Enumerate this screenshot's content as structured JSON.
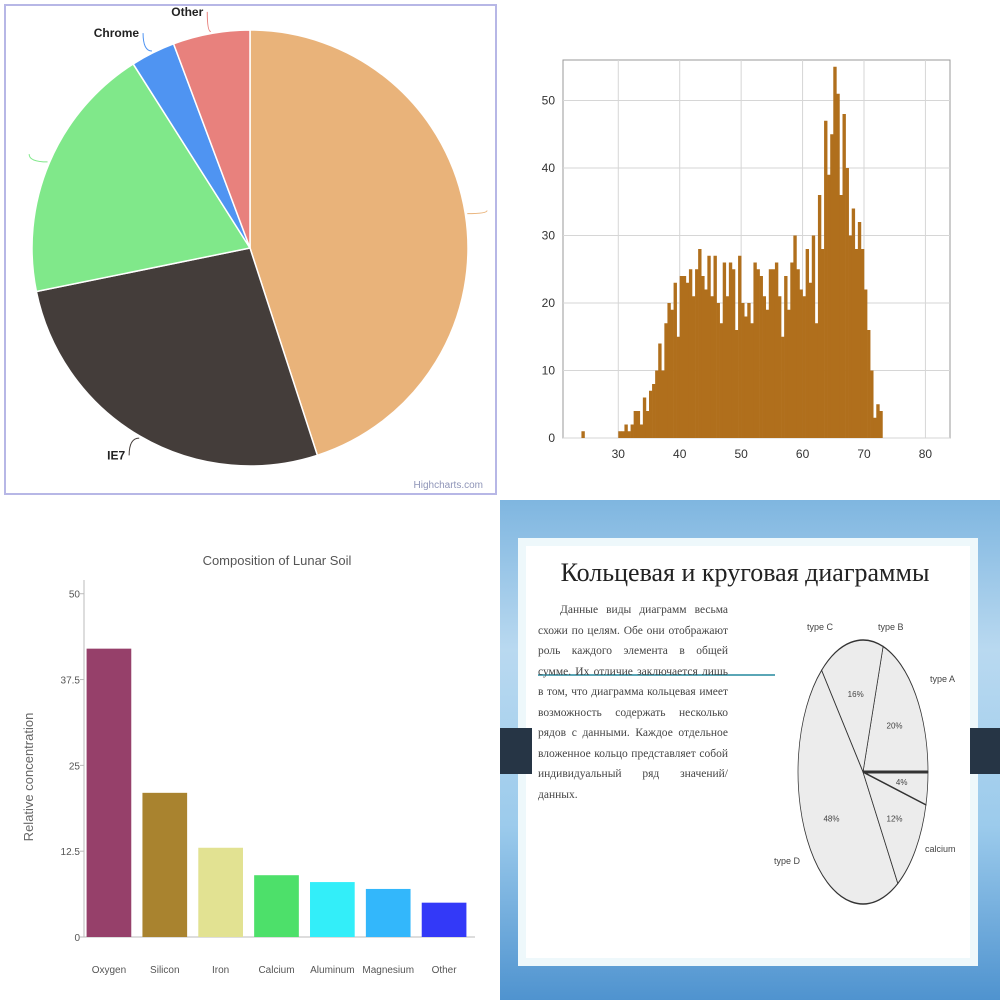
{
  "chart_data": [
    {
      "type": "pie",
      "title": "",
      "credit": "Highcharts.com",
      "slices": [
        {
          "label": "",
          "value": 45.0,
          "color": "#e9b37a"
        },
        {
          "label": "IE7",
          "value": 26.8,
          "color": "#443d3a"
        },
        {
          "label": "",
          "value": 19.2,
          "color": "#80e88a"
        },
        {
          "label": "Chrome",
          "value": 3.3,
          "color": "#4f94f2"
        },
        {
          "label": "Other",
          "value": 5.7,
          "color": "#e8817d"
        }
      ]
    },
    {
      "type": "bar",
      "title": "",
      "xlabel": "",
      "ylabel": "",
      "xlim": [
        21,
        84
      ],
      "ylim": [
        0,
        56
      ],
      "grid": true,
      "color": "#b06f1c",
      "xticks": [
        30,
        40,
        50,
        60,
        70,
        80
      ],
      "yticks": [
        0,
        10,
        20,
        30,
        40,
        50
      ],
      "bin_start": 24,
      "bin_width": 0.5,
      "values": [
        1,
        0,
        0,
        0,
        0,
        0,
        0,
        0,
        0,
        0,
        0,
        0,
        1,
        1,
        2,
        1,
        2,
        4,
        4,
        2,
        6,
        4,
        7,
        8,
        10,
        14,
        10,
        17,
        20,
        19,
        23,
        15,
        24,
        24,
        23,
        25,
        21,
        25,
        28,
        24,
        22,
        27,
        21,
        27,
        20,
        17,
        26,
        21,
        26,
        25,
        16,
        27,
        20,
        18,
        20,
        17,
        26,
        25,
        24,
        21,
        19,
        25,
        25,
        26,
        21,
        15,
        24,
        19,
        26,
        30,
        25,
        22,
        21,
        28,
        23,
        30,
        17,
        36,
        28,
        47,
        39,
        45,
        55,
        51,
        36,
        48,
        40,
        30,
        34,
        28,
        32,
        28,
        22,
        16,
        10,
        3,
        5,
        4
      ]
    },
    {
      "type": "bar",
      "title": "Composition of Lunar Soil",
      "xlabel": "",
      "ylabel": "Relative concentration",
      "ylim": [
        0,
        52
      ],
      "yticks": [
        "0",
        "12.5",
        "25",
        "37.5",
        "50"
      ],
      "categories": [
        "Oxygen",
        "Silicon",
        "Iron",
        "Calcium",
        "Aluminum",
        "Magnesium",
        "Other"
      ],
      "values": [
        42,
        21,
        13,
        9,
        8,
        7,
        5
      ],
      "colors": [
        "#96406a",
        "#a9832f",
        "#e2e292",
        "#4de06a",
        "#33eef9",
        "#33b7fb",
        "#3339f8"
      ]
    },
    {
      "type": "pie",
      "title": "Кольцевая и круговая диаграммы",
      "text": "Данные виды диаграмм весьма схожи по целям. Обе они отображают роль каждого элемента в общей сумме. Их отличие заключается лишь в том, что диаграмма кольцевая имеет возможность содержать несколько рядов с данными. Каждое отдельное вложенное кольцо представляет собой индивидуальный ряд значений/данных.",
      "slices": [
        {
          "label": "type A",
          "value": 20,
          "pct": "20%"
        },
        {
          "label": "calcium",
          "value": 16,
          "pct": "16%"
        },
        {
          "label": "type D",
          "value": 48,
          "pct": "48%"
        },
        {
          "label": "type C",
          "value": 12,
          "pct": "12%"
        },
        {
          "label": "type B",
          "value": 4,
          "pct": "4%"
        }
      ],
      "colors": {
        "fill": "#ececec",
        "stroke": "#333333"
      }
    }
  ]
}
